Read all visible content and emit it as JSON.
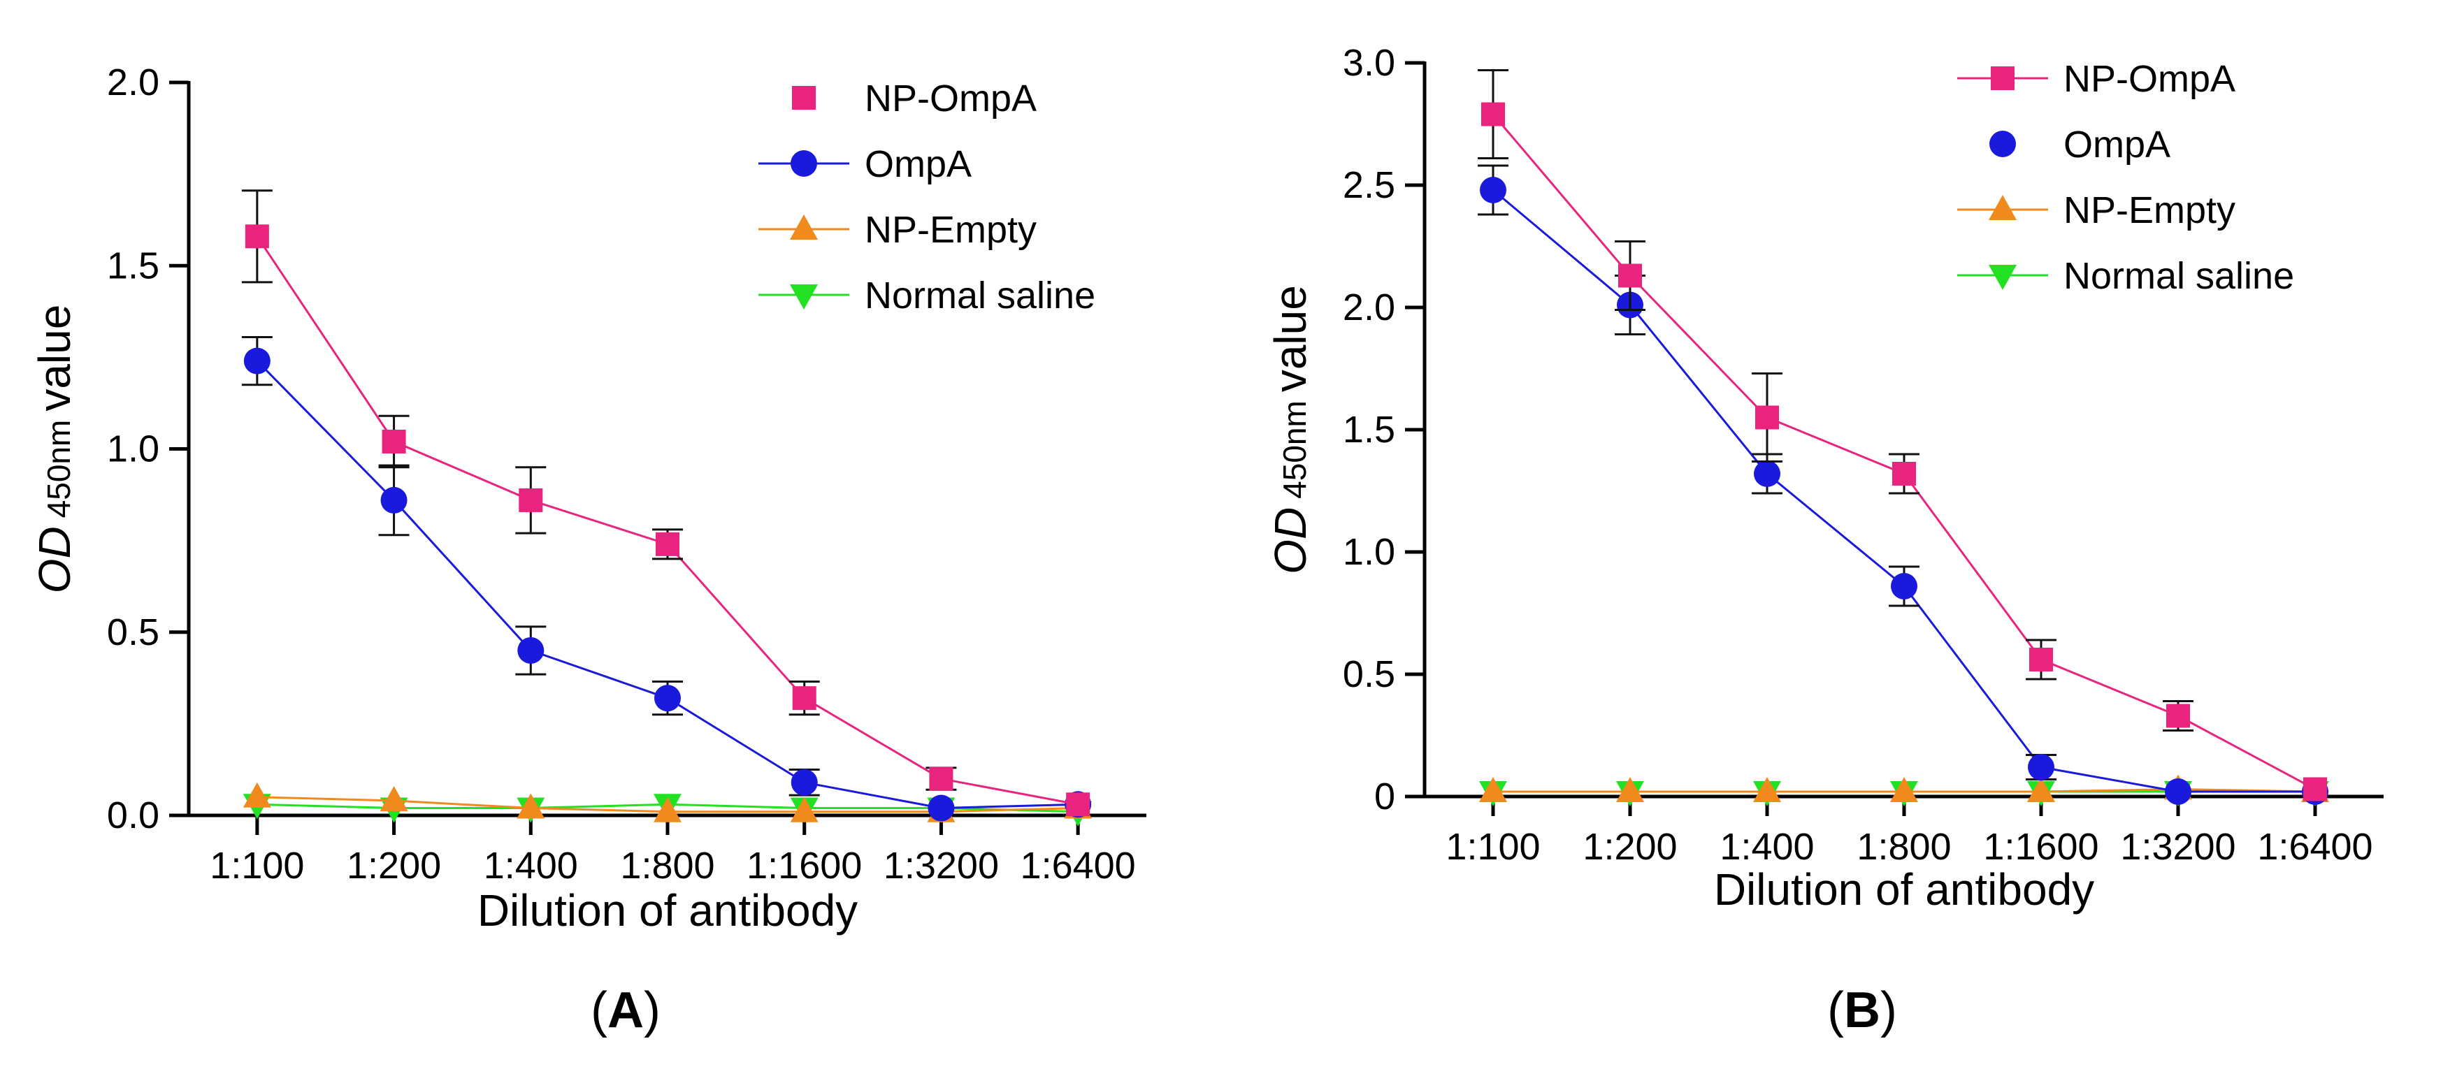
{
  "figure": {
    "panel_labels": [
      "A",
      "B"
    ],
    "colors": {
      "np_ompa": "#e8247f",
      "ompa": "#1a1adc",
      "np_empty": "#f08a1c",
      "normal_saline": "#22e022",
      "axis": "#000000",
      "errorbar": "#111111"
    }
  },
  "chart_data": [
    {
      "type": "line",
      "panel": "A",
      "title": "",
      "xlabel": "Dilution of antibody",
      "ylabel_prefix": "OD",
      "ylabel_subscript": "450nm",
      "ylabel_suffix": "value",
      "categories": [
        "1:100",
        "1:200",
        "1:400",
        "1:800",
        "1:1600",
        "1:3200",
        "1:6400"
      ],
      "ylim": [
        0,
        2.0
      ],
      "yticks": [
        0.0,
        0.5,
        1.0,
        1.5,
        2.0
      ],
      "ytick_labels": [
        "0.0",
        "0.5",
        "1.0",
        "1.5",
        "2.0"
      ],
      "legend_position": "top-right",
      "series": [
        {
          "name": "NP-OmpA",
          "marker": "square",
          "color": "#e8247f",
          "legend_line": false,
          "values": [
            1.58,
            1.02,
            0.86,
            0.74,
            0.32,
            0.1,
            0.03
          ],
          "errors": [
            0.125,
            0.07,
            0.09,
            0.04,
            0.045,
            0.03,
            0.0
          ]
        },
        {
          "name": "OmpA",
          "marker": "circle",
          "color": "#1a1adc",
          "legend_line": true,
          "values": [
            1.24,
            0.86,
            0.45,
            0.32,
            0.09,
            0.02,
            0.03
          ],
          "errors": [
            0.065,
            0.095,
            0.065,
            0.045,
            0.035,
            0.0,
            0.0
          ]
        },
        {
          "name": "NP-Empty",
          "marker": "triangle-up",
          "color": "#f08a1c",
          "legend_line": true,
          "values": [
            0.05,
            0.04,
            0.02,
            0.01,
            0.01,
            0.01,
            0.02
          ],
          "errors": [
            0,
            0,
            0,
            0,
            0,
            0,
            0
          ]
        },
        {
          "name": "Normal saline",
          "marker": "triangle-down",
          "color": "#22e022",
          "legend_line": true,
          "values": [
            0.03,
            0.02,
            0.02,
            0.03,
            0.02,
            0.02,
            0.01
          ],
          "errors": [
            0,
            0,
            0,
            0,
            0,
            0,
            0
          ]
        }
      ]
    },
    {
      "type": "line",
      "panel": "B",
      "title": "",
      "xlabel": "Dilution of antibody",
      "ylabel_prefix": "OD",
      "ylabel_subscript": "450nm",
      "ylabel_suffix": "value",
      "categories": [
        "1:100",
        "1:200",
        "1:400",
        "1:800",
        "1:1600",
        "1:3200",
        "1:6400"
      ],
      "ylim": [
        0,
        3.0
      ],
      "yticks": [
        0,
        0.5,
        1.0,
        1.5,
        2.0,
        2.5,
        3.0
      ],
      "ytick_labels": [
        "0",
        "0.5",
        "1.0",
        "1.5",
        "2.0",
        "2.5",
        "3.0"
      ],
      "legend_position": "top-right",
      "series": [
        {
          "name": "NP-OmpA",
          "marker": "square",
          "color": "#e8247f",
          "legend_line": true,
          "values": [
            2.79,
            2.13,
            1.55,
            1.32,
            0.56,
            0.33,
            0.03
          ],
          "errors": [
            0.18,
            0.14,
            0.18,
            0.08,
            0.08,
            0.06,
            0.0
          ]
        },
        {
          "name": "OmpA",
          "marker": "circle",
          "color": "#1a1adc",
          "legend_line": false,
          "values": [
            2.48,
            2.01,
            1.32,
            0.86,
            0.12,
            0.02,
            0.02
          ],
          "errors": [
            0.1,
            0.12,
            0.08,
            0.08,
            0.05,
            0.0,
            0.0
          ]
        },
        {
          "name": "NP-Empty",
          "marker": "triangle-up",
          "color": "#f08a1c",
          "legend_line": true,
          "values": [
            0.02,
            0.02,
            0.02,
            0.02,
            0.02,
            0.03,
            0.02
          ],
          "errors": [
            0,
            0,
            0,
            0,
            0,
            0,
            0
          ]
        },
        {
          "name": "Normal saline",
          "marker": "triangle-down",
          "color": "#22e022",
          "legend_line": true,
          "values": [
            0.02,
            0.02,
            0.02,
            0.02,
            0.02,
            0.02,
            0.02
          ],
          "errors": [
            0,
            0,
            0,
            0,
            0,
            0,
            0
          ]
        }
      ]
    }
  ]
}
